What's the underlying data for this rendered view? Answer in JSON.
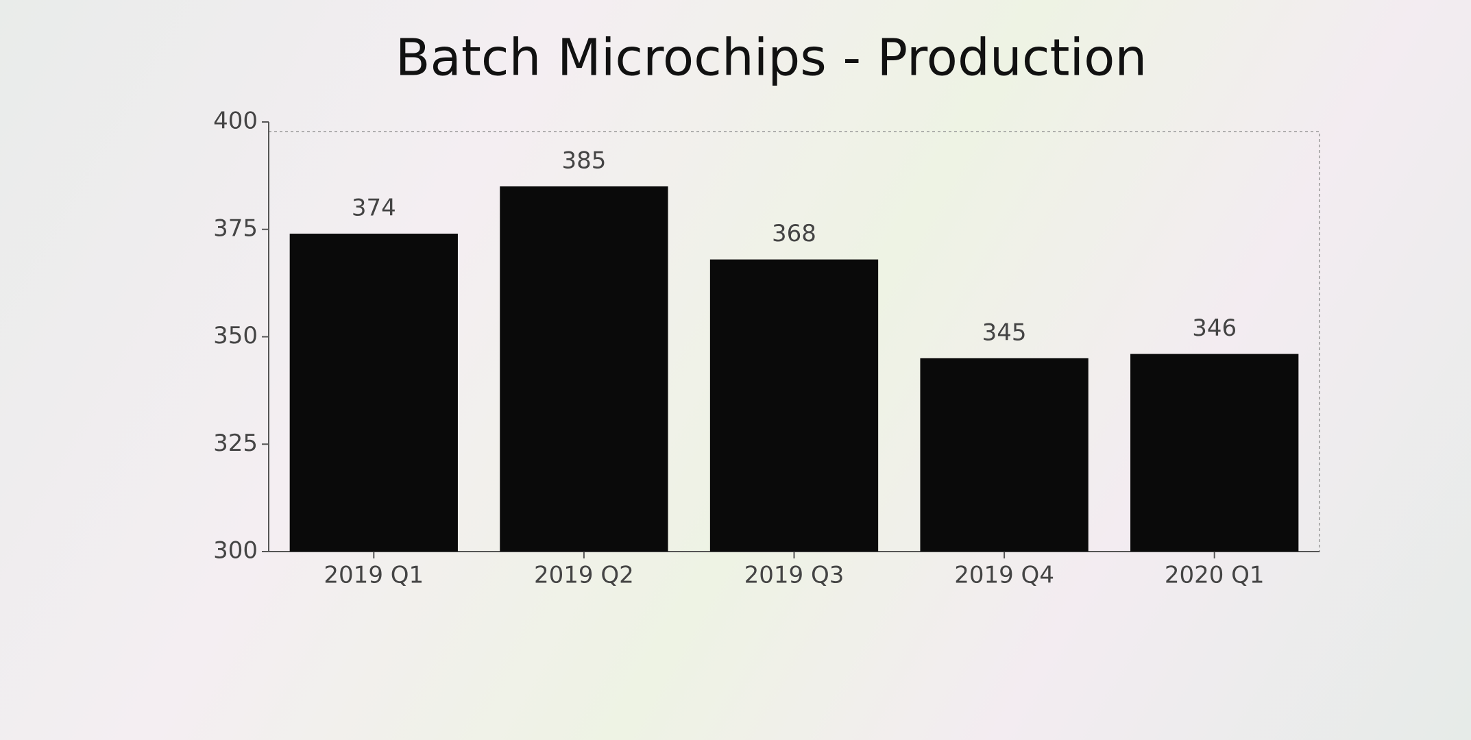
{
  "chart_data": {
    "type": "bar",
    "title": "Batch Microchips - Production",
    "categories": [
      "2019 Q1",
      "2019 Q2",
      "2019 Q3",
      "2019 Q4",
      "2020 Q1"
    ],
    "values": [
      374,
      385,
      368,
      345,
      346
    ],
    "color": "#0a0a0a",
    "ylim": [
      300,
      400
    ],
    "yticks": [
      300,
      325,
      350,
      375,
      400
    ],
    "grid": false
  }
}
